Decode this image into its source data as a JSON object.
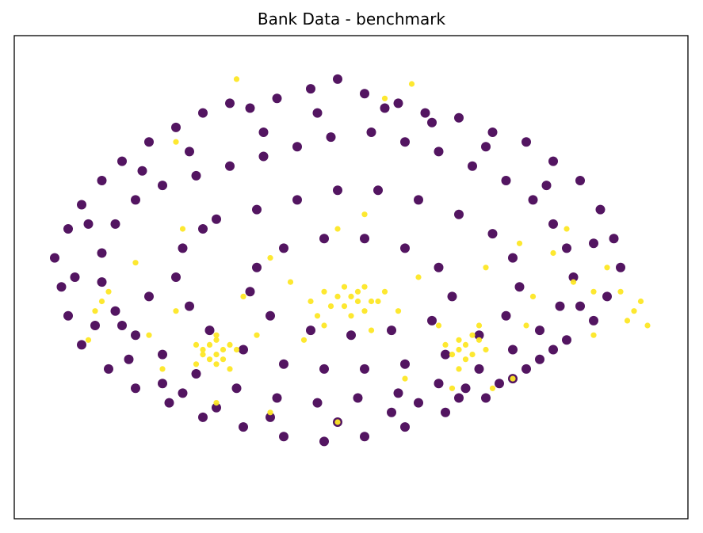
{
  "chart_data": {
    "type": "scatter",
    "title": "Bank Data - benchmark",
    "xlabel": "",
    "ylabel": "",
    "axis_ticks_visible": false,
    "grid": false,
    "legend": "none",
    "xlim": [
      0,
      100
    ],
    "ylim": [
      0,
      100
    ],
    "colors": {
      "class_0": "#440154",
      "class_1": "#fde725"
    },
    "series": [
      {
        "values_note_excluded": true,
        "color_key": "class_0",
        "points": [
          [
            32,
            86
          ],
          [
            35,
            85
          ],
          [
            39,
            87
          ],
          [
            44,
            89
          ],
          [
            48,
            91
          ],
          [
            52,
            88
          ],
          [
            57,
            86
          ],
          [
            61,
            84
          ],
          [
            66,
            83
          ],
          [
            71,
            80
          ],
          [
            76,
            78
          ],
          [
            80,
            74
          ],
          [
            84,
            70
          ],
          [
            87,
            64
          ],
          [
            89,
            58
          ],
          [
            90,
            52
          ],
          [
            88,
            46
          ],
          [
            86,
            41
          ],
          [
            82,
            37
          ],
          [
            78,
            33
          ],
          [
            74,
            29
          ],
          [
            70,
            25
          ],
          [
            64,
            22
          ],
          [
            58,
            19
          ],
          [
            52,
            17
          ],
          [
            46,
            16
          ],
          [
            40,
            17
          ],
          [
            34,
            19
          ],
          [
            28,
            21
          ],
          [
            23,
            24
          ],
          [
            18,
            27
          ],
          [
            14,
            31
          ],
          [
            10,
            36
          ],
          [
            8,
            42
          ],
          [
            7,
            48
          ],
          [
            6,
            54
          ],
          [
            8,
            60
          ],
          [
            10,
            65
          ],
          [
            13,
            70
          ],
          [
            16,
            74
          ],
          [
            20,
            78
          ],
          [
            24,
            81
          ],
          [
            28,
            84
          ],
          [
            22,
            69
          ],
          [
            27,
            71
          ],
          [
            32,
            73
          ],
          [
            37,
            75
          ],
          [
            42,
            77
          ],
          [
            47,
            79
          ],
          [
            53,
            80
          ],
          [
            58,
            78
          ],
          [
            63,
            76
          ],
          [
            68,
            73
          ],
          [
            73,
            70
          ],
          [
            77,
            66
          ],
          [
            80,
            61
          ],
          [
            82,
            56
          ],
          [
            83,
            50
          ],
          [
            81,
            44
          ],
          [
            78,
            39
          ],
          [
            74,
            35
          ],
          [
            69,
            31
          ],
          [
            63,
            28
          ],
          [
            57,
            26
          ],
          [
            51,
            25
          ],
          [
            45,
            24
          ],
          [
            39,
            25
          ],
          [
            33,
            27
          ],
          [
            27,
            30
          ],
          [
            22,
            34
          ],
          [
            18,
            38
          ],
          [
            15,
            43
          ],
          [
            13,
            49
          ],
          [
            13,
            55
          ],
          [
            15,
            61
          ],
          [
            18,
            66
          ],
          [
            30,
            62
          ],
          [
            36,
            64
          ],
          [
            42,
            66
          ],
          [
            48,
            68
          ],
          [
            54,
            68
          ],
          [
            60,
            66
          ],
          [
            66,
            63
          ],
          [
            71,
            59
          ],
          [
            74,
            54
          ],
          [
            75,
            48
          ],
          [
            73,
            42
          ],
          [
            69,
            38
          ],
          [
            64,
            34
          ],
          [
            58,
            32
          ],
          [
            52,
            31
          ],
          [
            46,
            31
          ],
          [
            40,
            32
          ],
          [
            34,
            35
          ],
          [
            29,
            39
          ],
          [
            26,
            44
          ],
          [
            24,
            50
          ],
          [
            25,
            56
          ],
          [
            28,
            60
          ],
          [
            40,
            56
          ],
          [
            46,
            58
          ],
          [
            52,
            58
          ],
          [
            58,
            56
          ],
          [
            63,
            52
          ],
          [
            65,
            46
          ],
          [
            62,
            41
          ],
          [
            56,
            39
          ],
          [
            50,
            38
          ],
          [
            44,
            39
          ],
          [
            38,
            42
          ],
          [
            35,
            47
          ],
          [
            36,
            52
          ],
          [
            20,
            46
          ],
          [
            16,
            40
          ],
          [
            22,
            28
          ],
          [
            30,
            23
          ],
          [
            60,
            24
          ],
          [
            67,
            27
          ],
          [
            76,
            31
          ],
          [
            84,
            44
          ],
          [
            86,
            57
          ],
          [
            79,
            69
          ],
          [
            70,
            77
          ],
          [
            62,
            82
          ],
          [
            55,
            85
          ],
          [
            45,
            84
          ],
          [
            37,
            80
          ],
          [
            26,
            76
          ],
          [
            19,
            72
          ],
          [
            11,
            61
          ],
          [
            9,
            50
          ],
          [
            12,
            40
          ],
          [
            17,
            33
          ],
          [
            25,
            26
          ],
          [
            38,
            21
          ],
          [
            48,
            20
          ],
          [
            56,
            22
          ],
          [
            66,
            25
          ],
          [
            72,
            28
          ],
          [
            80,
            35
          ]
        ]
      },
      {
        "color_key": "class_1",
        "points": [
          [
            28,
            35
          ],
          [
            29,
            36
          ],
          [
            30,
            34
          ],
          [
            31,
            35
          ],
          [
            29,
            33
          ],
          [
            30,
            37
          ],
          [
            32,
            36
          ],
          [
            28,
            34
          ],
          [
            31,
            33
          ],
          [
            33,
            35
          ],
          [
            27,
            36
          ],
          [
            30,
            32
          ],
          [
            66,
            35
          ],
          [
            67,
            36
          ],
          [
            68,
            34
          ],
          [
            65,
            34
          ],
          [
            69,
            37
          ],
          [
            70,
            35
          ],
          [
            66,
            37
          ],
          [
            67,
            33
          ],
          [
            64,
            36
          ],
          [
            68,
            38
          ],
          [
            49,
            44
          ],
          [
            50,
            46
          ],
          [
            51,
            45
          ],
          [
            48,
            46
          ],
          [
            52,
            43
          ],
          [
            53,
            45
          ],
          [
            50,
            42
          ],
          [
            47,
            44
          ],
          [
            46,
            47
          ],
          [
            51,
            47
          ],
          [
            52,
            48
          ],
          [
            49,
            48
          ],
          [
            55,
            47
          ],
          [
            54,
            45
          ],
          [
            45,
            42
          ],
          [
            44,
            45
          ],
          [
            13,
            45
          ],
          [
            12,
            43
          ],
          [
            14,
            47
          ],
          [
            92,
            43
          ],
          [
            93,
            45
          ],
          [
            91,
            41
          ],
          [
            90,
            47
          ],
          [
            94,
            40
          ],
          [
            86,
            38
          ],
          [
            24,
            78
          ],
          [
            33,
            91
          ],
          [
            59,
            90
          ],
          [
            55,
            87
          ],
          [
            52,
            63
          ],
          [
            48,
            60
          ],
          [
            60,
            50
          ],
          [
            70,
            52
          ],
          [
            25,
            60
          ],
          [
            18,
            53
          ],
          [
            38,
            54
          ],
          [
            41,
            49
          ],
          [
            57,
            43
          ],
          [
            63,
            40
          ],
          [
            76,
            40
          ],
          [
            80,
            55
          ],
          [
            82,
            60
          ],
          [
            22,
            31
          ],
          [
            74,
            29
          ],
          [
            71,
            27
          ],
          [
            36,
            38
          ],
          [
            43,
            37
          ],
          [
            58,
            29
          ],
          [
            48,
            20
          ],
          [
            38,
            22
          ],
          [
            30,
            24
          ],
          [
            65,
            27
          ],
          [
            77,
            46
          ],
          [
            83,
            49
          ],
          [
            86,
            47
          ],
          [
            20,
            38
          ],
          [
            24,
            43
          ],
          [
            34,
            46
          ],
          [
            30,
            38
          ],
          [
            27,
            32
          ],
          [
            32,
            31
          ],
          [
            66,
            31
          ],
          [
            69,
            40
          ],
          [
            53,
            39
          ],
          [
            46,
            40
          ],
          [
            11,
            37
          ],
          [
            88,
            52
          ],
          [
            75,
            57
          ]
        ]
      }
    ]
  }
}
